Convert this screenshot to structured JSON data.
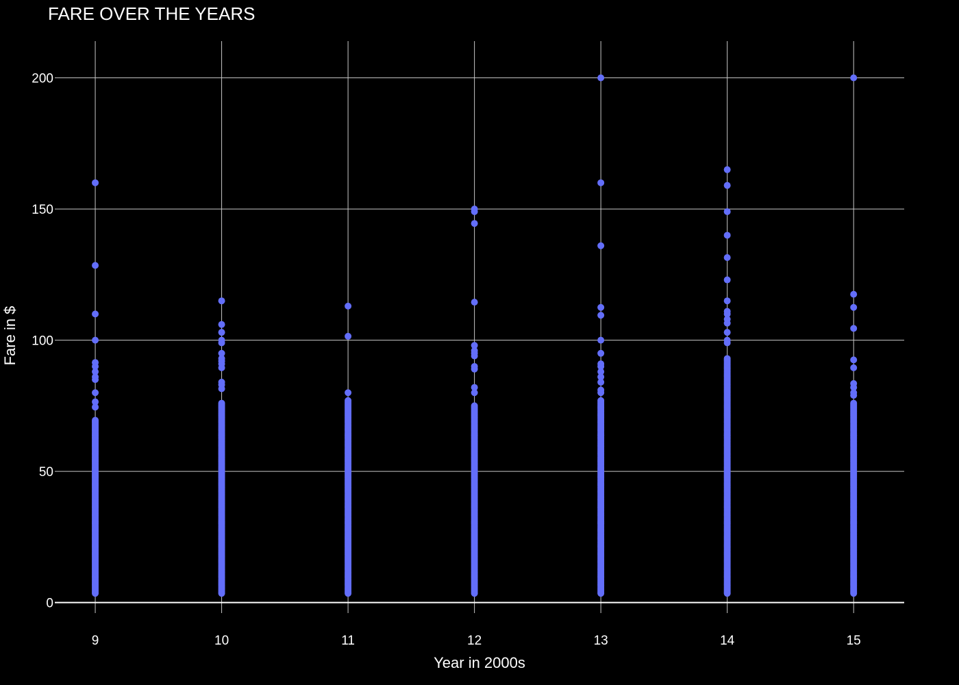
{
  "chart_data": {
    "type": "scatter",
    "title": "FARE OVER THE YEARS",
    "xlabel": "Year in 2000s",
    "ylabel": "Fare in $",
    "xlim": [
      8.68,
      15.4
    ],
    "ylim": [
      -4,
      214
    ],
    "x_ticks": [
      9,
      10,
      11,
      12,
      13,
      14,
      15
    ],
    "y_ticks": [
      0,
      50,
      100,
      150,
      200
    ],
    "grid": true,
    "legend": "none",
    "marker_color": "#636efa",
    "background": "#000000",
    "series": [
      {
        "year": 9,
        "dense_range": [
          3.5,
          69.5
        ],
        "values": [
          160,
          128.5,
          110,
          100,
          91.5,
          90,
          88,
          86,
          85,
          80,
          76.5,
          74.5
        ]
      },
      {
        "year": 10,
        "dense_range": [
          3.5,
          76
        ],
        "values": [
          115,
          106,
          103,
          100,
          99,
          95,
          93,
          92,
          91,
          89.5,
          84,
          83,
          81.5
        ]
      },
      {
        "year": 11,
        "dense_range": [
          3.5,
          77
        ],
        "values": [
          113,
          101.5,
          80
        ]
      },
      {
        "year": 12,
        "dense_range": [
          3.5,
          75
        ],
        "values": [
          150,
          149,
          144.5,
          114.5,
          98,
          96,
          95,
          94,
          90,
          89,
          82,
          80
        ]
      },
      {
        "year": 13,
        "dense_range": [
          3.5,
          77
        ],
        "values": [
          200,
          160,
          136,
          112.5,
          109.5,
          100,
          95,
          91,
          90,
          88,
          86,
          84,
          81,
          80
        ]
      },
      {
        "year": 14,
        "dense_range": [
          3.5,
          93
        ],
        "values": [
          165,
          159,
          149,
          140,
          131.5,
          123,
          115,
          111,
          110,
          108,
          106.5,
          103,
          100,
          99
        ]
      },
      {
        "year": 15,
        "dense_range": [
          3.5,
          76
        ],
        "values": [
          200,
          117.5,
          112.5,
          104.5,
          92.5,
          89.5,
          83.5,
          82,
          80,
          79
        ]
      }
    ]
  }
}
